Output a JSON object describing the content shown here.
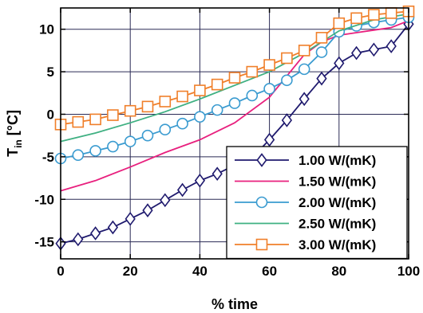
{
  "chart_data": {
    "type": "line",
    "title": "",
    "xlabel": "% time",
    "ylabel_main": "T",
    "ylabel_sub": "in",
    "ylabel_unit": " [°C]",
    "xlim": [
      0,
      100
    ],
    "ylim": [
      -17,
      12.5
    ],
    "x_ticks": [
      0,
      20,
      40,
      60,
      80,
      100
    ],
    "y_ticks": [
      -15,
      -10,
      -5,
      0,
      5,
      10
    ],
    "grid": true,
    "legend_position": "lower-right",
    "series": [
      {
        "name": "1.00 W/(mK)",
        "color": "#1f1a6e",
        "marker": "diamond",
        "x": [
          0,
          5,
          10,
          15,
          20,
          25,
          30,
          35,
          40,
          45,
          50,
          55,
          60,
          65,
          70,
          75,
          80,
          85,
          90,
          95,
          100
        ],
        "y": [
          -15.2,
          -14.7,
          -14.0,
          -13.3,
          -12.3,
          -11.3,
          -10.1,
          -8.9,
          -7.8,
          -7.0,
          -6.0,
          -5.1,
          -3.0,
          -0.7,
          1.8,
          4.2,
          6.0,
          7.2,
          7.6,
          8.0,
          10.6
        ]
      },
      {
        "name": "1.50 W/(mK)",
        "color": "#e8207e",
        "marker": "none",
        "x": [
          0,
          10,
          20,
          30,
          40,
          50,
          60,
          65,
          70,
          75,
          80,
          85,
          90,
          95,
          100
        ],
        "y": [
          -9.0,
          -7.8,
          -6.2,
          -4.5,
          -3.0,
          -1.0,
          2.0,
          4.5,
          7.0,
          8.5,
          9.3,
          9.6,
          9.9,
          10.2,
          11.0
        ]
      },
      {
        "name": "2.00 W/(mK)",
        "color": "#3a9bd0",
        "marker": "circle",
        "x": [
          0,
          5,
          10,
          15,
          20,
          25,
          30,
          35,
          40,
          45,
          50,
          55,
          60,
          65,
          70,
          75,
          80,
          85,
          90,
          95,
          100
        ],
        "y": [
          -5.2,
          -4.8,
          -4.3,
          -3.8,
          -3.2,
          -2.5,
          -1.8,
          -1.1,
          -0.3,
          0.5,
          1.3,
          2.2,
          3.0,
          4.0,
          5.3,
          7.3,
          9.7,
          10.4,
          10.8,
          11.1,
          11.4
        ]
      },
      {
        "name": "2.50 W/(mK)",
        "color": "#3fb082",
        "marker": "none",
        "x": [
          0,
          10,
          20,
          30,
          40,
          50,
          60,
          70,
          80,
          90,
          100
        ],
        "y": [
          -3.2,
          -2.2,
          -1.0,
          0.3,
          1.8,
          3.4,
          5.0,
          7.2,
          9.8,
          11.1,
          11.8
        ]
      },
      {
        "name": "3.00 W/(mK)",
        "color": "#f07f2a",
        "marker": "square",
        "x": [
          0,
          5,
          10,
          15,
          20,
          25,
          30,
          35,
          40,
          45,
          50,
          55,
          60,
          65,
          70,
          75,
          80,
          85,
          90,
          95,
          100
        ],
        "y": [
          -1.2,
          -0.9,
          -0.6,
          -0.1,
          0.4,
          0.9,
          1.5,
          2.1,
          2.8,
          3.5,
          4.3,
          5.0,
          5.8,
          6.6,
          7.5,
          9.0,
          10.7,
          11.3,
          11.7,
          11.9,
          12.1
        ]
      }
    ]
  }
}
